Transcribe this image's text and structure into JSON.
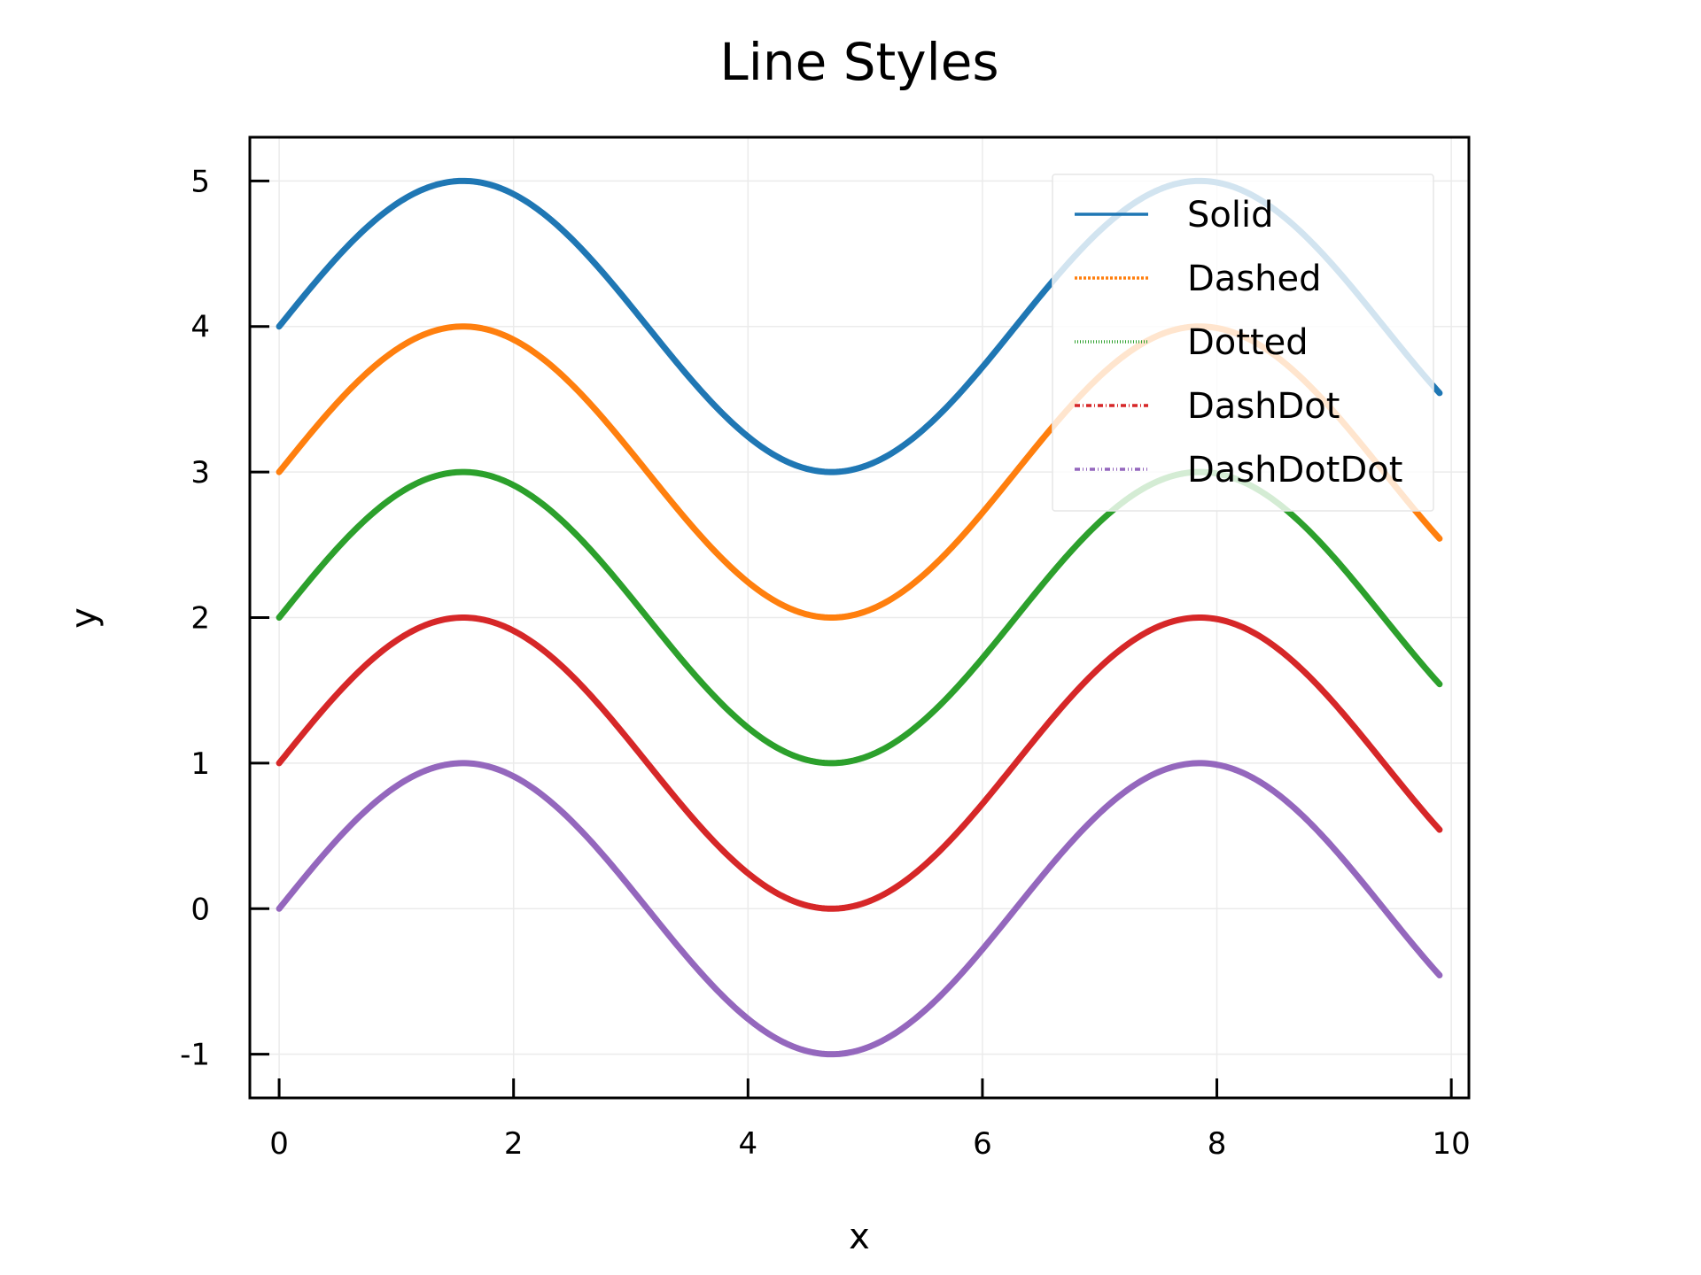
{
  "chart_data": {
    "type": "line",
    "title": "Line Styles",
    "xlabel": "x",
    "ylabel": "y",
    "xlim": [
      -0.25,
      10.15
    ],
    "ylim": [
      -1.3,
      5.3
    ],
    "xticks": [
      0,
      2,
      4,
      6,
      8,
      10
    ],
    "yticks": [
      -1,
      0,
      1,
      2,
      3,
      4,
      5
    ],
    "grid": true,
    "legend": "top-right",
    "x_range": [
      0,
      9.9
    ],
    "function": "y = sin(x) + offset",
    "series": [
      {
        "name": "Solid",
        "style": "solid",
        "color": "#1f77b4",
        "offset": 4,
        "x": [
          0,
          0.5,
          1.0,
          1.571,
          2.0,
          2.5,
          3.0,
          3.5,
          4.0,
          4.712,
          5.0,
          5.5,
          6.0,
          6.5,
          7.0,
          7.854,
          8.5,
          9.0,
          9.5,
          9.9
        ],
        "y": [
          4.0,
          4.48,
          4.84,
          5.0,
          4.91,
          4.6,
          4.14,
          3.65,
          3.24,
          3.0,
          3.04,
          3.29,
          3.72,
          4.22,
          4.66,
          5.0,
          4.8,
          4.41,
          3.92,
          3.54
        ]
      },
      {
        "name": "Dashed",
        "style": "dashed",
        "color": "#ff7f0e",
        "offset": 3,
        "x": [
          0,
          0.5,
          1.0,
          1.571,
          2.0,
          2.5,
          3.0,
          3.5,
          4.0,
          4.712,
          5.0,
          5.5,
          6.0,
          6.5,
          7.0,
          7.854,
          8.5,
          9.0,
          9.5,
          9.9
        ],
        "y": [
          3.0,
          3.48,
          3.84,
          4.0,
          3.91,
          3.6,
          3.14,
          2.65,
          2.24,
          2.0,
          2.04,
          2.29,
          2.72,
          3.22,
          3.66,
          4.0,
          3.8,
          3.41,
          2.92,
          2.54
        ]
      },
      {
        "name": "Dotted",
        "style": "dotted",
        "color": "#2ca02c",
        "offset": 2,
        "x": [
          0,
          0.5,
          1.0,
          1.571,
          2.0,
          2.5,
          3.0,
          3.5,
          4.0,
          4.712,
          5.0,
          5.5,
          6.0,
          6.5,
          7.0,
          7.854,
          8.5,
          9.0,
          9.5,
          9.9
        ],
        "y": [
          2.0,
          2.48,
          2.84,
          3.0,
          2.91,
          2.6,
          2.14,
          1.65,
          1.24,
          1.0,
          1.04,
          1.29,
          1.72,
          2.22,
          2.66,
          3.0,
          2.8,
          2.41,
          1.92,
          1.54
        ]
      },
      {
        "name": "DashDot",
        "style": "dashdot",
        "color": "#d62728",
        "offset": 1,
        "x": [
          0,
          0.5,
          1.0,
          1.571,
          2.0,
          2.5,
          3.0,
          3.5,
          4.0,
          4.712,
          5.0,
          5.5,
          6.0,
          6.5,
          7.0,
          7.854,
          8.5,
          9.0,
          9.5,
          9.9
        ],
        "y": [
          1.0,
          1.48,
          1.84,
          2.0,
          1.91,
          1.6,
          1.14,
          0.65,
          0.24,
          0.0,
          0.04,
          0.29,
          0.72,
          1.22,
          1.66,
          2.0,
          1.8,
          1.41,
          0.92,
          0.54
        ]
      },
      {
        "name": "DashDotDot",
        "style": "dashdotdot",
        "color": "#9467bd",
        "offset": 0,
        "x": [
          0,
          0.5,
          1.0,
          1.571,
          2.0,
          2.5,
          3.0,
          3.5,
          4.0,
          4.712,
          5.0,
          5.5,
          6.0,
          6.5,
          7.0,
          7.854,
          8.5,
          9.0,
          9.5,
          9.9
        ],
        "y": [
          0.0,
          0.48,
          0.84,
          1.0,
          0.91,
          0.6,
          0.14,
          -0.35,
          -0.76,
          -1.0,
          -0.96,
          -0.71,
          -0.28,
          0.22,
          0.66,
          1.0,
          0.8,
          0.41,
          -0.08,
          -0.46
        ]
      }
    ]
  }
}
